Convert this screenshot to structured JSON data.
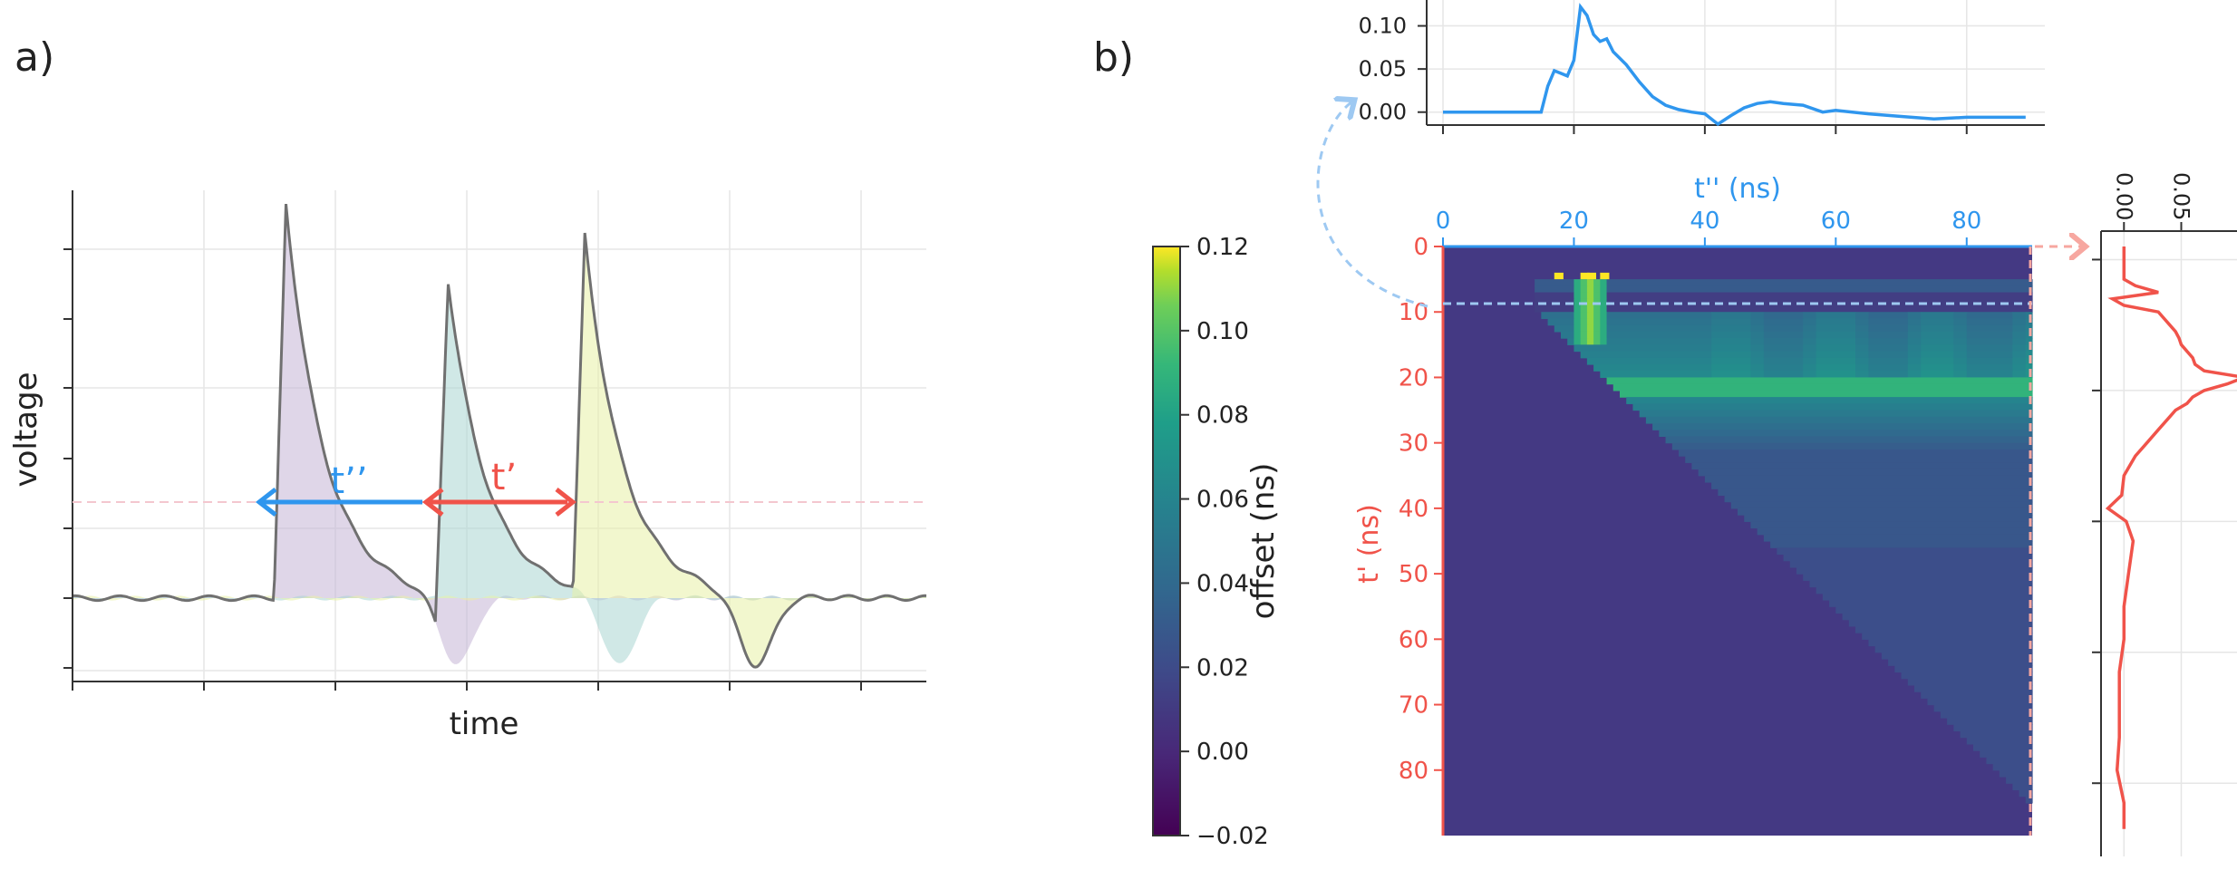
{
  "panels": {
    "a_label": "a)",
    "b_label": "b)"
  },
  "colors": {
    "blue": "#2f96ee",
    "red": "#f0534a",
    "trace": "#707070"
  },
  "chart_data": [
    {
      "type": "area",
      "panel": "a",
      "xlabel": "time",
      "ylabel": "voltage",
      "annotations": {
        "t_double": "t’’",
        "t_single": "t’"
      },
      "grid": true,
      "pulses": [
        {
          "peak_time": 0.25,
          "peak": 1.0,
          "fill": "#c4b5d6"
        },
        {
          "peak_time": 0.44,
          "peak": 0.8,
          "fill": "#a9d6d1"
        },
        {
          "peak_time": 0.6,
          "peak": 0.92,
          "fill": "#e7f0a6"
        }
      ]
    },
    {
      "type": "line",
      "panel": "b-top",
      "xlim": [
        0,
        90
      ],
      "ylim": [
        -0.015,
        0.13
      ],
      "yticks": [
        "0.00",
        "0.05",
        "0.10"
      ],
      "grid": true,
      "x": [
        0,
        5,
        10,
        15,
        16,
        17,
        18,
        19,
        20,
        21,
        22,
        23,
        24,
        25,
        26,
        28,
        30,
        32,
        34,
        36,
        38,
        40,
        42,
        44,
        46,
        48,
        50,
        52,
        55,
        58,
        60,
        65,
        70,
        75,
        80,
        85,
        89
      ],
      "values": [
        0,
        0,
        0,
        0,
        0.03,
        0.048,
        0.045,
        0.042,
        0.06,
        0.122,
        0.112,
        0.09,
        0.082,
        0.085,
        0.07,
        0.055,
        0.035,
        0.018,
        0.008,
        0.003,
        0.0,
        -0.002,
        -0.014,
        -0.004,
        0.005,
        0.01,
        0.012,
        0.01,
        0.008,
        0.0,
        0.002,
        -0.002,
        -0.005,
        -0.008,
        -0.006,
        -0.006,
        -0.006
      ]
    },
    {
      "type": "heatmap",
      "panel": "b-main",
      "xlabel": "t'' (ns)",
      "ylabel": "t' (ns)",
      "xticks": [
        "0",
        "20",
        "40",
        "60",
        "80"
      ],
      "yticks": [
        "0",
        "10",
        "20",
        "30",
        "40",
        "50",
        "60",
        "70",
        "80"
      ],
      "xlim": [
        0,
        90
      ],
      "ylim": [
        0,
        90
      ],
      "colorbar": {
        "label": "offset (ns)",
        "ticks": [
          "0.12",
          "0.10",
          "0.08",
          "0.06",
          "0.04",
          "0.02",
          "0.00",
          "−0.02"
        ],
        "range": [
          -0.02,
          0.12
        ]
      }
    },
    {
      "type": "line",
      "panel": "b-right",
      "xticks": [
        "0.00",
        "0.05"
      ],
      "xlim": [
        -0.02,
        0.12
      ],
      "y": [
        0,
        1,
        2,
        3,
        4,
        5,
        6,
        7,
        8,
        9,
        10,
        11,
        12,
        13,
        14,
        15,
        16,
        17,
        18,
        19,
        20,
        21,
        22,
        23,
        24,
        25,
        26,
        28,
        30,
        32,
        35,
        38,
        40,
        42,
        45,
        50,
        55,
        60,
        65,
        70,
        75,
        80,
        85,
        89
      ],
      "values": [
        0,
        0,
        0,
        0,
        0,
        0,
        0.01,
        0.03,
        -0.01,
        0.0,
        0.03,
        0.035,
        0.04,
        0.045,
        0.048,
        0.05,
        0.055,
        0.06,
        0.062,
        0.07,
        0.105,
        0.09,
        0.07,
        0.06,
        0.055,
        0.045,
        0.04,
        0.03,
        0.02,
        0.01,
        0.0,
        -0.002,
        -0.014,
        0.002,
        0.008,
        0.004,
        0.0,
        0.0,
        -0.004,
        -0.004,
        -0.004,
        -0.006,
        0.0,
        0.0
      ]
    }
  ]
}
